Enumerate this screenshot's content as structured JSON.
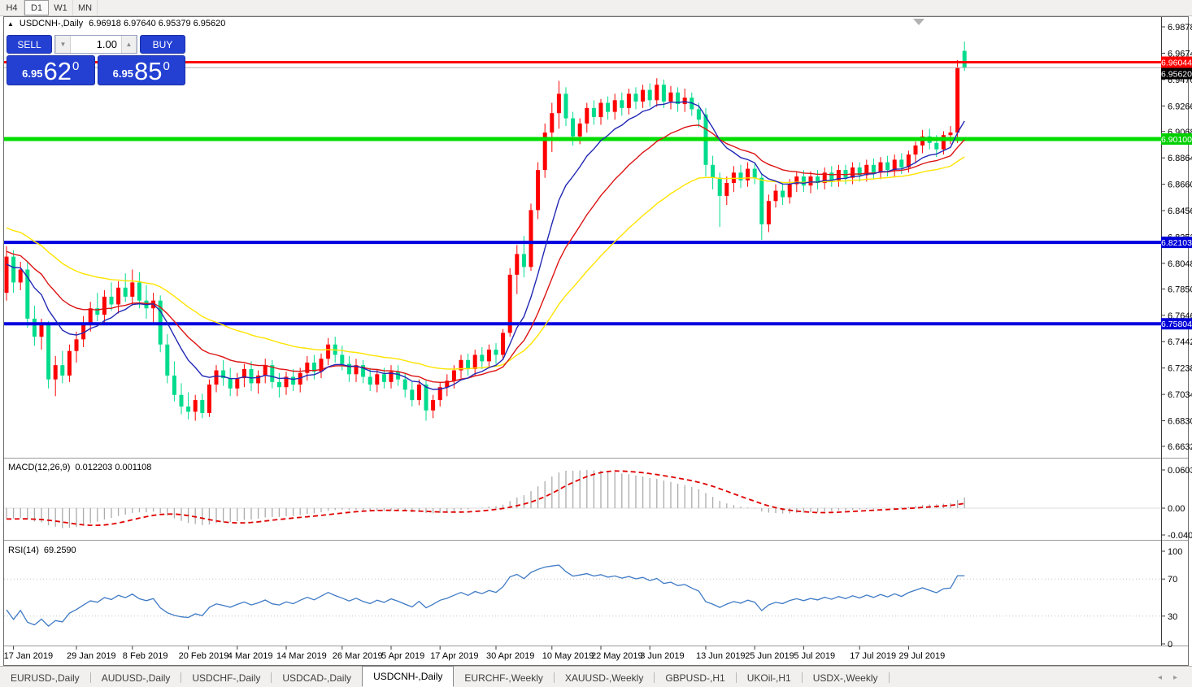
{
  "toolbar": {
    "timeframes": [
      {
        "label": "H4",
        "active": false
      },
      {
        "label": "D1",
        "active": true
      },
      {
        "label": "W1",
        "active": false
      },
      {
        "label": "MN",
        "active": false
      }
    ]
  },
  "chart": {
    "collapse_arrow": "▲",
    "symbol": "USDCNH-,Daily",
    "ohlc_line": "6.96918 6.97640 6.95379 6.95620"
  },
  "trade_panel": {
    "sell_label": "SELL",
    "buy_label": "BUY",
    "volume": "1.00",
    "spinner_down": "▼",
    "spinner_up": "▲",
    "sell_price": {
      "base": "6.95",
      "big": "62",
      "sup": "0"
    },
    "buy_price": {
      "base": "6.95",
      "big": "85",
      "sup": "0"
    }
  },
  "price_axis": {
    "ticks": [
      "6.98780",
      "6.96740",
      "6.94700",
      "6.92660",
      "6.90680",
      "6.88640",
      "6.86600",
      "6.84560",
      "6.82520",
      "6.80480",
      "6.78500",
      "6.76460",
      "6.74420",
      "6.72380",
      "6.70340",
      "6.68300",
      "6.66320"
    ],
    "badges": [
      {
        "value": "6.96044",
        "color": "#ff0000"
      },
      {
        "value": "6.95620",
        "color": "#000000"
      },
      {
        "value": "6.90100",
        "color": "#00cf00"
      },
      {
        "value": "6.82103",
        "color": "#0000d9"
      },
      {
        "value": "6.75804",
        "color": "#0000d9"
      }
    ]
  },
  "macd_panel": {
    "label": "MACD(12,26,9)",
    "values": "0.012203 0.001108",
    "axis": [
      "0.060329",
      "0.00",
      "-0.040135"
    ]
  },
  "rsi_panel": {
    "label": "RSI(14)",
    "value": "69.2590",
    "axis": [
      "100",
      "70",
      "30",
      "0"
    ]
  },
  "date_axis": {
    "labels": [
      {
        "bar": 1,
        "text": "17 Jan 2019"
      },
      {
        "bar": 10,
        "text": "29 Jan 2019"
      },
      {
        "bar": 18,
        "text": "8 Feb 2019"
      },
      {
        "bar": 26,
        "text": "20 Feb 2019"
      },
      {
        "bar": 33,
        "text": "4 Mar 2019"
      },
      {
        "bar": 40,
        "text": "14 Mar 2019"
      },
      {
        "bar": 48,
        "text": "26 Mar 2019"
      },
      {
        "bar": 55,
        "text": "5 Apr 2019"
      },
      {
        "bar": 62,
        "text": "17 Apr 2019"
      },
      {
        "bar": 70,
        "text": "30 Apr 2019"
      },
      {
        "bar": 78,
        "text": "10 May 2019"
      },
      {
        "bar": 85,
        "text": "22 May 2019"
      },
      {
        "bar": 92,
        "text": "3 Jun 2019"
      },
      {
        "bar": 100,
        "text": "13 Jun 2019"
      },
      {
        "bar": 107,
        "text": "25 Jun 2019"
      },
      {
        "bar": 114,
        "text": "5 Jul 2019"
      },
      {
        "bar": 122,
        "text": "17 Jul 2019"
      },
      {
        "bar": 129,
        "text": "29 Jul 2019"
      }
    ]
  },
  "tabs": {
    "items": [
      {
        "label": "EURUSD-,Daily",
        "active": false
      },
      {
        "label": "AUDUSD-,Daily",
        "active": false
      },
      {
        "label": "USDCHF-,Daily",
        "active": false
      },
      {
        "label": "USDCAD-,Daily",
        "active": false
      },
      {
        "label": "USDCNH-,Daily",
        "active": true
      },
      {
        "label": "EURCHF-,Weekly",
        "active": false
      },
      {
        "label": "XAUUSD-,Weekly",
        "active": false
      },
      {
        "label": "GBPUSD-,H1",
        "active": false
      },
      {
        "label": "UKOil-,H1",
        "active": false
      },
      {
        "label": "USDX-,Weekly",
        "active": false
      }
    ],
    "scroll_left": "◂",
    "scroll_right": "▸"
  },
  "chart_data": {
    "type": "candlestick",
    "symbol": "USDCNH-",
    "timeframe": "Daily",
    "last_ohlc": {
      "open": 6.96918,
      "high": 6.9764,
      "low": 6.95379,
      "close": 6.9562
    },
    "y_range": [
      6.6632,
      6.9878
    ],
    "colors": {
      "up": "#fe0000",
      "down": "#00dc8c"
    },
    "hlines": [
      {
        "price": 6.96044,
        "color": "#fe0000",
        "width": 3
      },
      {
        "price": 6.9562,
        "color": "#b2b2b2",
        "width": 1
      },
      {
        "price": 6.901,
        "color": "#00dd00",
        "width": 5
      },
      {
        "price": 6.82103,
        "color": "#0000e0",
        "width": 4
      },
      {
        "price": 6.75804,
        "color": "#0000e0",
        "width": 4
      }
    ],
    "moving_averages": [
      {
        "period": 40,
        "color": "#ffe400"
      },
      {
        "period": 20,
        "color": "#dc1414"
      },
      {
        "period": 10,
        "color": "#2228b4"
      }
    ],
    "indicators": [
      {
        "name": "MACD",
        "fast": 12,
        "slow": 26,
        "signal": 9,
        "value": 0.012203,
        "signal_value": 0.001108,
        "axis_max": 0.060329,
        "axis_min": -0.040135
      },
      {
        "name": "RSI",
        "period": 14,
        "value": 69.259,
        "levels": [
          30,
          70
        ]
      }
    ],
    "pre_closes": [
      6.893,
      6.889,
      6.885,
      6.882,
      6.878,
      6.874,
      6.871,
      6.868,
      6.866,
      6.864,
      6.862,
      6.86,
      6.858,
      6.856,
      6.855,
      6.853,
      6.851,
      6.849,
      6.846,
      6.843,
      6.838,
      6.834,
      6.83,
      6.827,
      6.824,
      6.822,
      6.82,
      6.818,
      6.816,
      6.815,
      6.813,
      6.811,
      6.81,
      6.808,
      6.806,
      6.804,
      6.801,
      6.798,
      6.794,
      6.79
    ],
    "candles": [
      [
        6.782,
        6.818,
        6.776,
        6.81
      ],
      [
        6.81,
        6.815,
        6.782,
        6.79
      ],
      [
        6.79,
        6.806,
        6.784,
        6.8
      ],
      [
        6.8,
        6.806,
        6.755,
        6.762
      ],
      [
        6.762,
        6.772,
        6.741,
        6.748
      ],
      [
        6.748,
        6.762,
        6.738,
        6.757
      ],
      [
        6.757,
        6.76,
        6.708,
        6.715
      ],
      [
        6.715,
        6.733,
        6.702,
        6.726
      ],
      [
        6.726,
        6.737,
        6.712,
        6.718
      ],
      [
        6.718,
        6.742,
        6.713,
        6.737
      ],
      [
        6.737,
        6.752,
        6.728,
        6.746
      ],
      [
        6.746,
        6.764,
        6.74,
        6.758
      ],
      [
        6.758,
        6.775,
        6.752,
        6.77
      ],
      [
        6.77,
        6.782,
        6.76,
        6.765
      ],
      [
        6.765,
        6.784,
        6.758,
        6.779
      ],
      [
        6.779,
        6.79,
        6.768,
        6.773
      ],
      [
        6.773,
        6.791,
        6.766,
        6.786
      ],
      [
        6.786,
        6.797,
        6.775,
        6.779
      ],
      [
        6.779,
        6.8,
        6.772,
        6.79
      ],
      [
        6.79,
        6.798,
        6.77,
        6.776
      ],
      [
        6.776,
        6.788,
        6.762,
        6.77
      ],
      [
        6.77,
        6.782,
        6.758,
        6.776
      ],
      [
        6.776,
        6.78,
        6.736,
        6.742
      ],
      [
        6.742,
        6.75,
        6.712,
        6.718
      ],
      [
        6.718,
        6.729,
        6.698,
        6.703
      ],
      [
        6.703,
        6.712,
        6.688,
        6.694
      ],
      [
        6.694,
        6.705,
        6.684,
        6.69
      ],
      [
        6.69,
        6.703,
        6.683,
        6.699
      ],
      [
        6.699,
        6.704,
        6.685,
        6.689
      ],
      [
        6.689,
        6.715,
        6.686,
        6.711
      ],
      [
        6.711,
        6.726,
        6.705,
        6.722
      ],
      [
        6.722,
        6.73,
        6.71,
        6.716
      ],
      [
        6.716,
        6.724,
        6.702,
        6.708
      ],
      [
        6.708,
        6.72,
        6.702,
        6.716
      ],
      [
        6.716,
        6.727,
        6.709,
        6.723
      ],
      [
        6.723,
        6.729,
        6.706,
        6.712
      ],
      [
        6.712,
        6.722,
        6.704,
        6.718
      ],
      [
        6.718,
        6.731,
        6.712,
        6.726
      ],
      [
        6.726,
        6.73,
        6.708,
        6.713
      ],
      [
        6.713,
        6.72,
        6.701,
        6.709
      ],
      [
        6.709,
        6.721,
        6.703,
        6.717
      ],
      [
        6.717,
        6.723,
        6.706,
        6.711
      ],
      [
        6.711,
        6.724,
        6.705,
        6.72
      ],
      [
        6.72,
        6.733,
        6.714,
        6.728
      ],
      [
        6.728,
        6.734,
        6.715,
        6.721
      ],
      [
        6.721,
        6.735,
        6.716,
        6.731
      ],
      [
        6.731,
        6.747,
        6.726,
        6.742
      ],
      [
        6.742,
        6.748,
        6.728,
        6.734
      ],
      [
        6.734,
        6.741,
        6.722,
        6.727
      ],
      [
        6.727,
        6.733,
        6.713,
        6.719
      ],
      [
        6.719,
        6.731,
        6.713,
        6.726
      ],
      [
        6.726,
        6.73,
        6.712,
        6.717
      ],
      [
        6.717,
        6.724,
        6.706,
        6.711
      ],
      [
        6.711,
        6.723,
        6.705,
        6.719
      ],
      [
        6.719,
        6.724,
        6.708,
        6.713
      ],
      [
        6.713,
        6.726,
        6.708,
        6.721
      ],
      [
        6.721,
        6.726,
        6.71,
        6.715
      ],
      [
        6.715,
        6.72,
        6.701,
        6.707
      ],
      [
        6.707,
        6.713,
        6.694,
        6.699
      ],
      [
        6.699,
        6.715,
        6.695,
        6.711
      ],
      [
        6.711,
        6.714,
        6.683,
        6.691
      ],
      [
        6.691,
        6.703,
        6.685,
        6.699
      ],
      [
        6.699,
        6.713,
        6.694,
        6.709
      ],
      [
        6.709,
        6.719,
        6.702,
        6.714
      ],
      [
        6.714,
        6.726,
        6.708,
        6.722
      ],
      [
        6.722,
        6.734,
        6.716,
        6.73
      ],
      [
        6.73,
        6.735,
        6.718,
        6.723
      ],
      [
        6.723,
        6.738,
        6.718,
        6.734
      ],
      [
        6.734,
        6.74,
        6.723,
        6.729
      ],
      [
        6.729,
        6.742,
        6.724,
        6.738
      ],
      [
        6.738,
        6.743,
        6.727,
        6.734
      ],
      [
        6.734,
        6.754,
        6.73,
        6.751
      ],
      [
        6.751,
        6.801,
        6.748,
        6.796
      ],
      [
        6.796,
        6.819,
        6.781,
        6.812
      ],
      [
        6.812,
        6.826,
        6.794,
        6.802
      ],
      [
        6.802,
        6.851,
        6.799,
        6.846
      ],
      [
        6.846,
        6.883,
        6.839,
        6.877
      ],
      [
        6.877,
        6.913,
        6.871,
        6.906
      ],
      [
        6.906,
        6.929,
        6.891,
        6.921
      ],
      [
        6.921,
        6.946,
        6.909,
        6.936
      ],
      [
        6.936,
        6.941,
        6.911,
        6.917
      ],
      [
        6.917,
        6.922,
        6.896,
        6.903
      ],
      [
        6.903,
        6.917,
        6.897,
        6.913
      ],
      [
        6.913,
        6.929,
        6.906,
        6.925
      ],
      [
        6.925,
        6.931,
        6.912,
        6.918
      ],
      [
        6.918,
        6.932,
        6.912,
        6.929
      ],
      [
        6.929,
        6.934,
        6.916,
        6.922
      ],
      [
        6.922,
        6.936,
        6.916,
        6.931
      ],
      [
        6.931,
        6.937,
        6.919,
        6.925
      ],
      [
        6.925,
        6.94,
        6.92,
        6.936
      ],
      [
        6.936,
        6.941,
        6.924,
        6.93
      ],
      [
        6.93,
        6.943,
        6.925,
        6.939
      ],
      [
        6.939,
        6.944,
        6.926,
        6.931
      ],
      [
        6.931,
        6.948,
        6.926,
        6.943
      ],
      [
        6.943,
        6.947,
        6.925,
        6.93
      ],
      [
        6.93,
        6.942,
        6.924,
        6.937
      ],
      [
        6.937,
        6.941,
        6.922,
        6.928
      ],
      [
        6.928,
        6.94,
        6.922,
        6.933
      ],
      [
        6.933,
        6.937,
        6.919,
        6.924
      ],
      [
        6.924,
        6.929,
        6.91,
        6.916
      ],
      [
        6.92,
        6.925,
        6.872,
        6.881
      ],
      [
        6.881,
        6.888,
        6.862,
        6.871
      ],
      [
        6.871,
        6.875,
        6.833,
        6.857
      ],
      [
        6.857,
        6.872,
        6.85,
        6.867
      ],
      [
        6.867,
        6.88,
        6.86,
        6.875
      ],
      [
        6.875,
        6.881,
        6.863,
        6.869
      ],
      [
        6.869,
        6.883,
        6.864,
        6.878
      ],
      [
        6.878,
        6.882,
        6.866,
        6.871
      ],
      [
        6.871,
        6.874,
        6.823,
        6.835
      ],
      [
        6.835,
        6.858,
        6.829,
        6.853
      ],
      [
        6.853,
        6.866,
        6.848,
        6.861
      ],
      [
        6.861,
        6.866,
        6.85,
        6.856
      ],
      [
        6.856,
        6.87,
        6.851,
        6.866
      ],
      [
        6.866,
        6.876,
        6.86,
        6.872
      ],
      [
        6.872,
        6.877,
        6.86,
        6.865
      ],
      [
        6.865,
        6.876,
        6.859,
        6.872
      ],
      [
        6.872,
        6.877,
        6.862,
        6.867
      ],
      [
        6.867,
        6.879,
        6.862,
        6.875
      ],
      [
        6.875,
        6.88,
        6.864,
        6.869
      ],
      [
        6.869,
        6.881,
        6.864,
        6.877
      ],
      [
        6.877,
        6.881,
        6.866,
        6.871
      ],
      [
        6.871,
        6.883,
        6.866,
        6.879
      ],
      [
        6.879,
        6.883,
        6.868,
        6.873
      ],
      [
        6.873,
        6.885,
        6.868,
        6.881
      ],
      [
        6.881,
        6.886,
        6.87,
        6.875
      ],
      [
        6.875,
        6.887,
        6.87,
        6.883
      ],
      [
        6.883,
        6.888,
        6.872,
        6.877
      ],
      [
        6.877,
        6.889,
        6.872,
        6.885
      ],
      [
        6.885,
        6.89,
        6.874,
        6.879
      ],
      [
        6.879,
        6.892,
        6.875,
        6.889
      ],
      [
        6.889,
        6.899,
        6.882,
        6.896
      ],
      [
        6.896,
        6.908,
        6.89,
        6.903
      ],
      [
        6.903,
        6.909,
        6.893,
        6.898
      ],
      [
        6.898,
        6.904,
        6.887,
        6.893
      ],
      [
        6.893,
        6.907,
        6.889,
        6.904
      ],
      [
        6.904,
        6.911,
        6.897,
        6.906
      ],
      [
        6.906,
        6.962,
        6.898,
        6.956
      ],
      [
        6.96918,
        6.9764,
        6.95379,
        6.9562
      ]
    ]
  }
}
